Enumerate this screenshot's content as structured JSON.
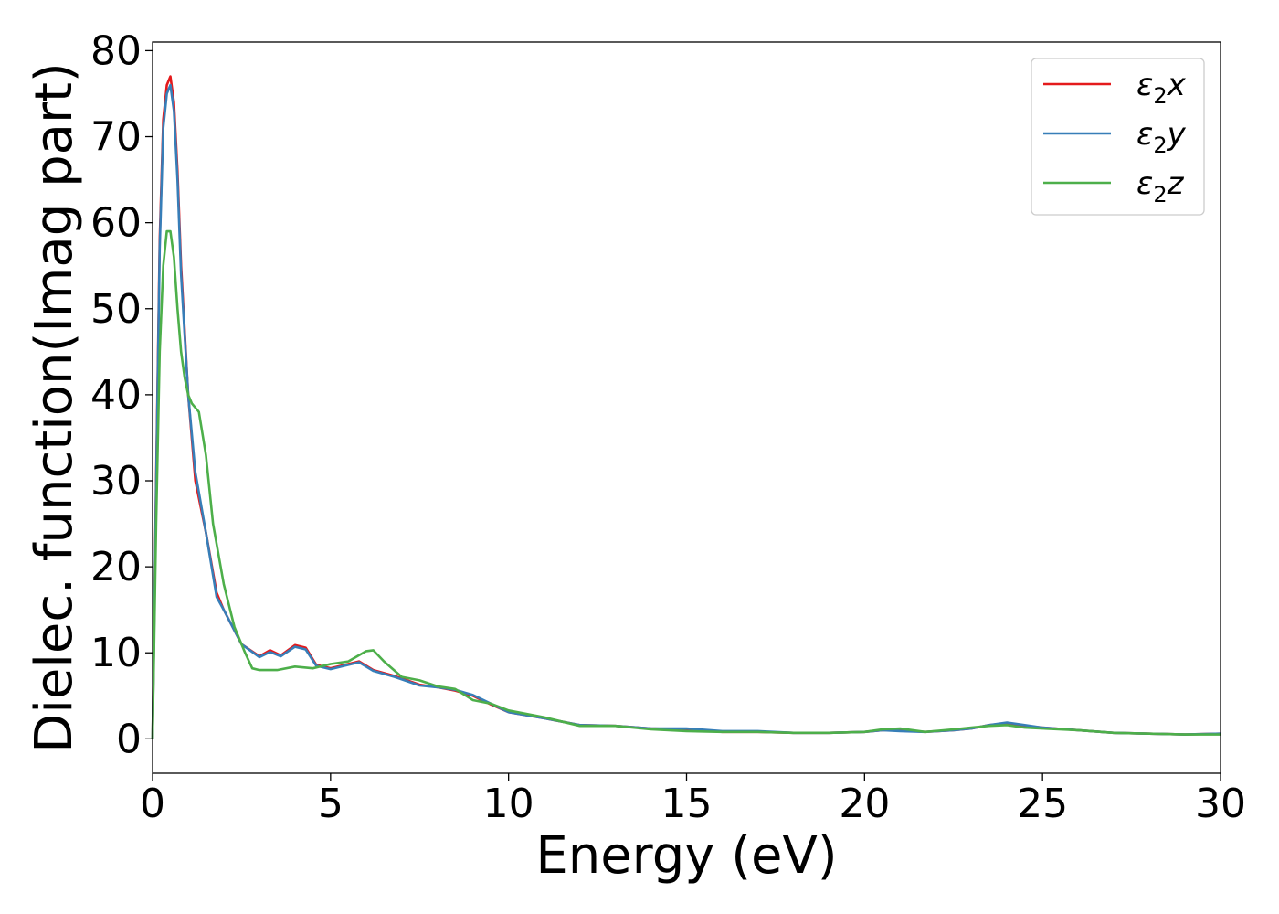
{
  "chart_data": {
    "type": "line",
    "xlabel": "Energy (eV)",
    "ylabel": "Dielec. function(Imag part)",
    "xlim": [
      0,
      30
    ],
    "ylim": [
      -4,
      81
    ],
    "xticks": [
      0,
      5,
      10,
      15,
      20,
      25,
      30
    ],
    "yticks": [
      0,
      10,
      20,
      30,
      40,
      50,
      60,
      70,
      80
    ],
    "grid": false,
    "legend_position": "top-right",
    "series": [
      {
        "name": "ε₂x",
        "legend_base": "ε",
        "legend_sub": "2",
        "legend_suffix": "x",
        "color": "#e41a1c",
        "x": [
          0,
          0.1,
          0.2,
          0.3,
          0.4,
          0.5,
          0.6,
          0.7,
          0.8,
          1.0,
          1.2,
          1.5,
          1.8,
          2.0,
          2.5,
          3.0,
          3.3,
          3.6,
          4.0,
          4.3,
          4.6,
          5.0,
          5.5,
          5.8,
          6.2,
          6.8,
          7.5,
          8.0,
          8.5,
          9.0,
          9.5,
          10.0,
          11.0,
          12.0,
          13.0,
          14.0,
          15.0,
          16.0,
          17.0,
          18.0,
          19.0,
          20.0,
          20.5,
          21.0,
          21.7,
          22.5,
          23.0,
          23.5,
          24.0,
          24.5,
          25.0,
          26.0,
          27.0,
          28.0,
          29.0,
          30.0
        ],
        "y": [
          0,
          30,
          58,
          72,
          76,
          77,
          74,
          66,
          55,
          40,
          30,
          24,
          17,
          15,
          11,
          9.6,
          10.3,
          9.7,
          10.9,
          10.6,
          8.6,
          8.2,
          8.7,
          9.0,
          8.0,
          7.3,
          6.3,
          6.0,
          5.6,
          5.0,
          4.0,
          3.1,
          2.4,
          1.6,
          1.5,
          1.2,
          1.1,
          0.8,
          0.8,
          0.7,
          0.7,
          0.8,
          1.0,
          1.0,
          0.8,
          1.0,
          1.2,
          1.6,
          1.8,
          1.5,
          1.3,
          1.0,
          0.7,
          0.6,
          0.5,
          0.6
        ]
      },
      {
        "name": "ε₂y",
        "legend_base": "ε",
        "legend_sub": "2",
        "legend_suffix": "y",
        "color": "#377eb8",
        "x": [
          0,
          0.1,
          0.2,
          0.3,
          0.4,
          0.5,
          0.6,
          0.7,
          0.8,
          1.0,
          1.2,
          1.5,
          1.8,
          2.0,
          2.5,
          3.0,
          3.3,
          3.6,
          4.0,
          4.3,
          4.6,
          5.0,
          5.5,
          5.8,
          6.2,
          6.8,
          7.5,
          8.0,
          8.5,
          9.0,
          9.5,
          10.0,
          11.0,
          12.0,
          13.0,
          14.0,
          15.0,
          16.0,
          17.0,
          18.0,
          19.0,
          20.0,
          20.5,
          21.0,
          21.7,
          22.5,
          23.0,
          23.5,
          24.0,
          24.5,
          25.0,
          26.0,
          27.0,
          28.0,
          29.0,
          30.0
        ],
        "y": [
          0,
          29,
          57,
          71,
          75,
          76,
          73,
          65,
          54,
          40,
          31,
          24,
          16.5,
          15,
          11,
          9.5,
          10.1,
          9.6,
          10.7,
          10.4,
          8.5,
          8.1,
          8.6,
          8.9,
          7.9,
          7.2,
          6.2,
          6.0,
          5.7,
          5.1,
          4.1,
          3.1,
          2.4,
          1.6,
          1.5,
          1.2,
          1.2,
          0.9,
          0.9,
          0.7,
          0.7,
          0.8,
          1.0,
          0.9,
          0.8,
          1.0,
          1.2,
          1.6,
          1.9,
          1.6,
          1.3,
          1.0,
          0.7,
          0.6,
          0.5,
          0.6
        ]
      },
      {
        "name": "ε₂z",
        "legend_base": "ε",
        "legend_sub": "2",
        "legend_suffix": "z",
        "color": "#4daf4a",
        "x": [
          0,
          0.1,
          0.2,
          0.3,
          0.4,
          0.5,
          0.6,
          0.7,
          0.8,
          0.9,
          1.0,
          1.1,
          1.3,
          1.5,
          1.7,
          2.0,
          2.3,
          2.6,
          2.8,
          3.0,
          3.5,
          4.0,
          4.5,
          5.0,
          5.5,
          6.0,
          6.2,
          6.5,
          7.0,
          7.5,
          8.0,
          8.5,
          9.0,
          9.5,
          10.0,
          11.0,
          12.0,
          13.0,
          14.0,
          15.0,
          16.0,
          17.0,
          18.0,
          19.0,
          20.0,
          20.5,
          21.0,
          21.7,
          22.5,
          23.0,
          23.5,
          24.0,
          24.5,
          25.0,
          26.0,
          27.0,
          28.0,
          29.0,
          30.0
        ],
        "y": [
          0,
          25,
          45,
          55,
          59,
          59,
          56,
          50,
          45,
          42,
          40,
          39,
          38,
          33,
          25,
          18,
          13,
          10,
          8.2,
          8.0,
          8.0,
          8.4,
          8.2,
          8.7,
          9.0,
          10.2,
          10.3,
          9.0,
          7.2,
          6.8,
          6.1,
          5.8,
          4.5,
          4.1,
          3.3,
          2.5,
          1.5,
          1.5,
          1.1,
          0.9,
          0.8,
          0.8,
          0.7,
          0.7,
          0.8,
          1.1,
          1.2,
          0.8,
          1.1,
          1.3,
          1.5,
          1.6,
          1.3,
          1.2,
          1.0,
          0.7,
          0.6,
          0.5,
          0.5
        ]
      }
    ]
  }
}
